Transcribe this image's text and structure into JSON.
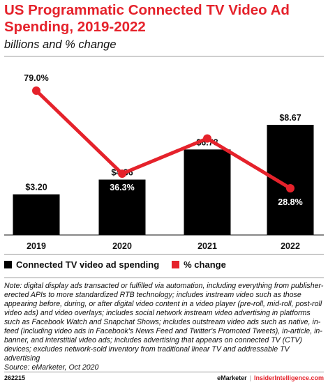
{
  "title": "US Programmatic Connected TV Video Ad Spending, 2019-2022",
  "subtitle": "billions and % change",
  "legend": {
    "bar_label": "Connected TV video ad spending",
    "line_label": "% change"
  },
  "colors": {
    "bar": "#000000",
    "line": "#e5222b"
  },
  "note": "Note: digital display ads transacted or fulfilled via automation, including everything from publisher-erected APIs to more standardized RTB technology; includes instream video such as those appearing before, during, or after digital video content in a video player (pre-roll, mid-roll, post-roll video ads) and video overlays; includes social network instream video advertising in platforms such as Facebook Watch and Snapchat Shows; includes outstream video ads such as native, in-feed (including video ads in Facebook's News Feed and Twitter's Promoted Tweets), in-article, in-banner, and interstitial video ads; includes advertising that appears on connected TV (CTV) devices; excludes network-sold inventory from traditional linear TV and addressable TV advertising",
  "source": "Source: eMarketer, Oct 2020",
  "footer": {
    "id": "262215",
    "brand1": "eMarketer",
    "sep": "|",
    "brand2": "InsiderIntelligence.com"
  },
  "chart_data": {
    "type": "bar",
    "categories": [
      "2019",
      "2020",
      "2021",
      "2022"
    ],
    "series": [
      {
        "name": "Connected TV video ad spending",
        "type": "bar",
        "values": [
          3.2,
          4.36,
          6.73,
          8.67
        ],
        "labels": [
          "$3.20",
          "$4.36",
          "$6.73",
          "$8.67"
        ]
      },
      {
        "name": "% change",
        "type": "line",
        "values": [
          79.0,
          36.3,
          54.4,
          28.8
        ],
        "labels": [
          "79.0%",
          "36.3%",
          "54.4%",
          "28.8%"
        ]
      }
    ]
  }
}
